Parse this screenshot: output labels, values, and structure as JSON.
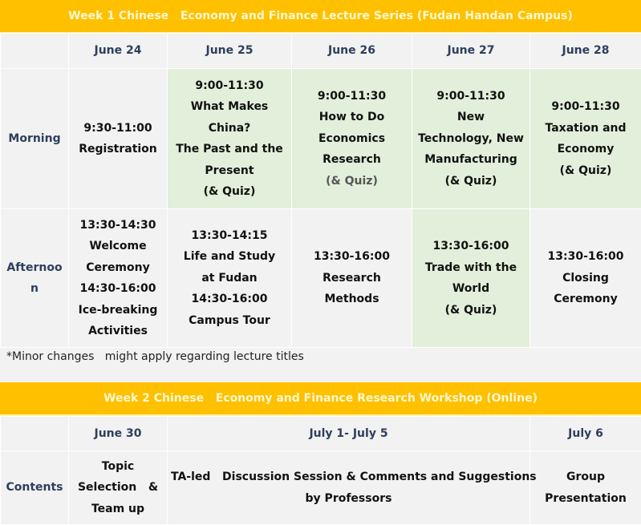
{
  "week1": {
    "title": "Week 1 Chinese   Economy and Finance Lecture Series (Fudan Handan Campus)",
    "dates": [
      "June 24",
      "June 25",
      "June 26",
      "June 27",
      "June 28"
    ],
    "rows": [
      {
        "label": "Morning",
        "cells": [
          {
            "lines": [
              "9:30-11:00",
              "Registration"
            ],
            "highlight": false
          },
          {
            "lines": [
              "9:00-11:30",
              "What Makes",
              "China?",
              "The Past and the",
              "Present",
              "(& Quiz)"
            ],
            "highlight": true
          },
          {
            "lines": [
              "9:00-11:30",
              "How to Do",
              "Economics",
              "Research",
              "(& Quiz)"
            ],
            "highlight": true
          },
          {
            "lines": [
              "9:00-11:30",
              "New",
              "Technology, New",
              "Manufacturing",
              "(& Quiz)"
            ],
            "highlight": true
          },
          {
            "lines": [
              "9:00-11:30",
              "Taxation and",
              "Economy",
              "(& Quiz)"
            ],
            "highlight": true
          }
        ]
      },
      {
        "label": "Afternoo n",
        "cells": [
          {
            "lines": [
              "13:30-14:30",
              "Welcome",
              "Ceremony",
              "14:30-16:00",
              "Ice-breaking",
              "Activities"
            ],
            "highlight": false
          },
          {
            "lines": [
              "13:30-14:15",
              "Life and Study",
              "at Fudan",
              "14:30-16:00",
              "Campus Tour"
            ],
            "highlight": false
          },
          {
            "lines": [
              "13:30-16:00",
              "Research",
              "Methods"
            ],
            "highlight": false
          },
          {
            "lines": [
              "13:30-16:00",
              "Trade with the",
              "World",
              "(& Quiz)"
            ],
            "highlight": true
          },
          {
            "lines": [
              "13:30-16:00",
              "Closing",
              "Ceremony"
            ],
            "highlight": false
          }
        ]
      }
    ],
    "note": "*Minor changes   might apply regarding lecture titles"
  },
  "week2": {
    "title": "Week 2 Chinese   Economy and Finance Research Workshop (Online)",
    "dates": [
      "June 30",
      "July 1- July 5",
      "July 6"
    ],
    "row": {
      "label": "Contents",
      "cells": [
        {
          "lines": [
            "Topic",
            "Selection   &",
            "Team up"
          ]
        },
        {
          "lines": [
            "TA-led   Discussion Session & Comments and Suggestions",
            "by Professors"
          ]
        },
        {
          "lines": [
            "Group",
            "Presentation"
          ]
        }
      ]
    }
  },
  "colors": {
    "band": "#ffc000",
    "highlight": "#e2efda",
    "background": "#f2f2f2",
    "label": "#2d3e5c"
  }
}
